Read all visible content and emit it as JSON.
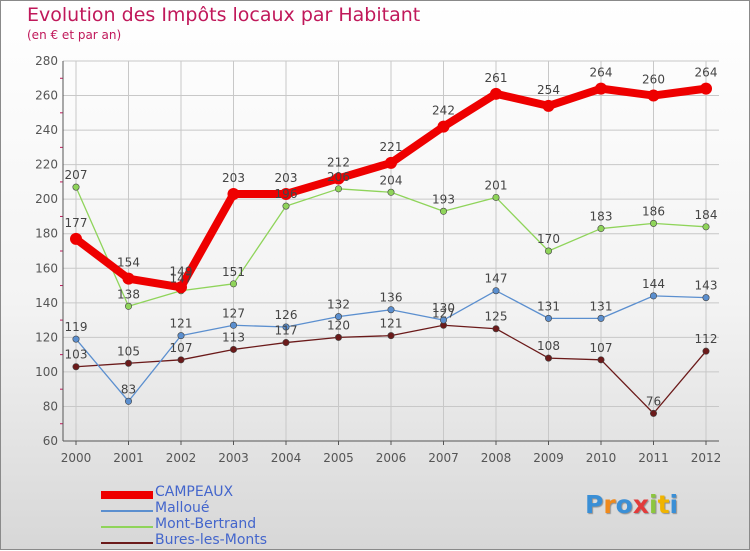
{
  "colors": {
    "title": "#c0185a",
    "axis": "#555555",
    "grid": "#c8c8c8",
    "tick_red": "#c0185a",
    "legend_text": "#4466cc"
  },
  "chart_data": {
    "type": "line",
    "title": "Evolution des Impôts locaux par Habitant",
    "subtitle": "(en € et par an)",
    "xlabel": "",
    "ylabel": "",
    "ylim": [
      60,
      280
    ],
    "yticks": [
      60,
      80,
      100,
      120,
      140,
      160,
      180,
      200,
      220,
      240,
      260,
      280
    ],
    "grid": true,
    "legend_position": "bottom-left",
    "x": [
      "2000",
      "2001",
      "2002",
      "2003",
      "2004",
      "2005",
      "2006",
      "2007",
      "2008",
      "2009",
      "2010",
      "2011",
      "2012"
    ],
    "series": [
      {
        "name": "Bures-les-Monts",
        "color": "#6b1a1a",
        "width": 1.3,
        "marker": 3.2,
        "labels_above": true,
        "values": [
          103,
          105,
          107,
          113,
          117,
          120,
          121,
          127,
          125,
          108,
          107,
          76,
          112
        ]
      },
      {
        "name": "Malloué",
        "color": "#5b8fcf",
        "width": 1.3,
        "marker": 3.2,
        "labels_above": true,
        "values": [
          119,
          83,
          121,
          127,
          126,
          132,
          136,
          130,
          147,
          131,
          131,
          144,
          143
        ]
      },
      {
        "name": "Mont-Bertrand",
        "color": "#8fd45a",
        "width": 1.3,
        "marker": 3.2,
        "labels_above": true,
        "values": [
          207,
          138,
          147,
          151,
          196,
          206,
          204,
          193,
          201,
          170,
          183,
          186,
          184
        ]
      },
      {
        "name": "CAMPEAUX",
        "color": "#ee0000",
        "width": 8,
        "marker": 6,
        "labels_above": true,
        "values": [
          177,
          154,
          149,
          203,
          203,
          212,
          221,
          242,
          261,
          254,
          264,
          260,
          264
        ]
      }
    ]
  },
  "legend": [
    {
      "label": "CAMPEAUX",
      "color": "#ee0000",
      "thick": true
    },
    {
      "label": "Malloué",
      "color": "#5b8fcf",
      "thick": false
    },
    {
      "label": "Mont-Bertrand",
      "color": "#8fd45a",
      "thick": false
    },
    {
      "label": "Bures-les-Monts",
      "color": "#6b1a1a",
      "thick": false
    }
  ],
  "logo": {
    "text": "Proxiti",
    "colors": [
      "#3a8fd6",
      "#f08a1c",
      "#3a8fd6",
      "#e23b3b",
      "#8cc63f",
      "#f0b400",
      "#3a8fd6"
    ]
  }
}
